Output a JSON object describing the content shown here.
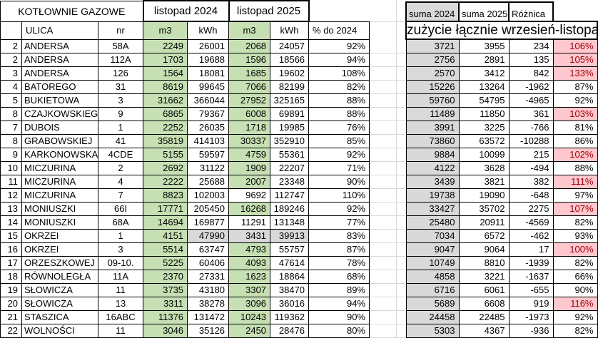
{
  "colors": {
    "green": "#c6e0b4",
    "gray": "#d9d9d9",
    "pink": "#ffc7ce",
    "red_text": "#9c0006",
    "border": "#000000",
    "gridline": "#d9d9d9"
  },
  "left_table": {
    "title": "KOTŁOWNIE GAZOWE",
    "groups": [
      {
        "label": "listopad 2024"
      },
      {
        "label": "listopad 2025"
      }
    ],
    "columns": {
      "ulica": "ULICA",
      "nr": "nr",
      "m3": "m3",
      "kwh": "kWh",
      "pct": "% do 2024"
    },
    "rows": [
      {
        "num": "2",
        "ulica": "ANDERSA",
        "nr": "58A",
        "m3_2024": "2249",
        "kwh_2024": "26001",
        "m3_2025": "2068",
        "kwh_2025": "24057",
        "pct": "92%"
      },
      {
        "num": "2",
        "ulica": "ANDERSA",
        "nr": "112A",
        "m3_2024": "1703",
        "kwh_2024": "19688",
        "m3_2025": "1596",
        "kwh_2025": "18566",
        "pct": "94%"
      },
      {
        "num": "3",
        "ulica": "ANDERSA",
        "nr": "126",
        "m3_2024": "1564",
        "kwh_2024": "18081",
        "m3_2025": "1685",
        "kwh_2025": "19602",
        "pct": "108%"
      },
      {
        "num": "4",
        "ulica": "BATOREGO",
        "nr": "31",
        "m3_2024": "8619",
        "kwh_2024": "99645",
        "m3_2025": "7066",
        "kwh_2025": "82199",
        "pct": "82%"
      },
      {
        "num": "5",
        "ulica": "BUKIETOWA",
        "nr": "3",
        "m3_2024": "31662",
        "kwh_2024": "366044",
        "m3_2025": "27952",
        "kwh_2025": "325165",
        "pct": "88%"
      },
      {
        "num": "8",
        "ulica": "CZAJKOWSKIEGO",
        "nr": "9",
        "m3_2024": "6865",
        "kwh_2024": "79367",
        "m3_2025": "6008",
        "kwh_2025": "69891",
        "pct": "88%"
      },
      {
        "num": "7",
        "ulica": "DUBOIS",
        "nr": "1",
        "m3_2024": "2252",
        "kwh_2024": "26035",
        "m3_2025": "1718",
        "kwh_2025": "19985",
        "pct": "76%"
      },
      {
        "num": "8",
        "ulica": "GRABOWSKIEJ",
        "nr": "41",
        "m3_2024": "35819",
        "kwh_2024": "414103",
        "m3_2025": "30337",
        "kwh_2025": "352910",
        "pct": "85%"
      },
      {
        "num": "9",
        "ulica": "KARKONOWSKA",
        "nr": "4CDE",
        "m3_2024": "5155",
        "kwh_2024": "59597",
        "m3_2025": "4759",
        "kwh_2025": "55361",
        "pct": "92%"
      },
      {
        "num": "10",
        "ulica": "MICZURINA",
        "nr": "2",
        "m3_2024": "2692",
        "kwh_2024": "31122",
        "m3_2025": "1909",
        "kwh_2025": "22207",
        "pct": "71%"
      },
      {
        "num": "11",
        "ulica": "MICZURINA",
        "nr": "4",
        "m3_2024": "2222",
        "kwh_2024": "25688",
        "m3_2025": "2007",
        "kwh_2025": "23348",
        "pct": "90%"
      },
      {
        "num": "12",
        "ulica": "MICZURINA",
        "nr": "7",
        "m3_2024": "8823",
        "kwh_2024": "102003",
        "m3_2025": "9692",
        "kwh_2025": "112747",
        "pct": "110%",
        "fills": {
          "m3_2025": "white"
        }
      },
      {
        "num": "13",
        "ulica": "MONIUSZKI",
        "nr": "66I",
        "m3_2024": "17771",
        "kwh_2024": "205450",
        "m3_2025": "16268",
        "kwh_2025": "189246",
        "pct": "92%"
      },
      {
        "num": "14",
        "ulica": "MONIUSZKI",
        "nr": "68A",
        "m3_2024": "14694",
        "kwh_2024": "169877",
        "m3_2025": "11291",
        "kwh_2025": "131348",
        "pct": "77%",
        "fills": {
          "m3_2025": "white"
        }
      },
      {
        "num": "15",
        "ulica": "OKRZEI",
        "nr": "1",
        "m3_2024": "4151",
        "kwh_2024": "47990",
        "m3_2025": "3431",
        "kwh_2025": "39913",
        "pct": "83%",
        "fills": {
          "kwh_2024": "gray",
          "m3_2025": "gray",
          "kwh_2025": "gray"
        }
      },
      {
        "num": "16",
        "ulica": "OKRZEI",
        "nr": "3",
        "m3_2024": "5514",
        "kwh_2024": "63747",
        "m3_2025": "4793",
        "kwh_2025": "55757",
        "pct": "87%"
      },
      {
        "num": "17",
        "ulica": "ORZESZKOWEJ",
        "nr": "09-10.",
        "m3_2024": "5225",
        "kwh_2024": "60406",
        "m3_2025": "4093",
        "kwh_2025": "47614",
        "pct": "78%"
      },
      {
        "num": "18",
        "ulica": "RÓWNOLEGŁA",
        "nr": "11A",
        "m3_2024": "2370",
        "kwh_2024": "27331",
        "m3_2025": "1623",
        "kwh_2025": "18864",
        "pct": "68%"
      },
      {
        "num": "19",
        "ulica": "SŁOWICZA",
        "nr": "11",
        "m3_2024": "3735",
        "kwh_2024": "43180",
        "m3_2025": "3307",
        "kwh_2025": "38470",
        "pct": "89%"
      },
      {
        "num": "20",
        "ulica": "SŁOWICZA",
        "nr": "13",
        "m3_2024": "3311",
        "kwh_2024": "38278",
        "m3_2025": "3096",
        "kwh_2025": "36016",
        "pct": "94%"
      },
      {
        "num": "21",
        "ulica": "STASZICA",
        "nr": "16ABC",
        "m3_2024": "11376",
        "kwh_2024": "131472",
        "m3_2025": "10243",
        "kwh_2025": "119362",
        "pct": "90%"
      },
      {
        "num": "22",
        "ulica": "WOLNOŚCI",
        "nr": "11",
        "m3_2024": "3046",
        "kwh_2024": "35126",
        "m3_2025": "2450",
        "kwh_2025": "28476",
        "pct": "80%"
      }
    ]
  },
  "right_table": {
    "headers": {
      "suma_2024": "suma 2024",
      "suma_2025": "suma 2025",
      "roznica": "Różnica"
    },
    "title": "zużycie łącznie wrzesień-listopad",
    "rows": [
      {
        "suma_2024": "3721",
        "suma_2025": "3955",
        "roznica": "234",
        "pct": "106%",
        "highlight": true
      },
      {
        "suma_2024": "2756",
        "suma_2025": "2891",
        "roznica": "135",
        "pct": "105%",
        "highlight": true
      },
      {
        "suma_2024": "2570",
        "suma_2025": "3412",
        "roznica": "842",
        "pct": "133%",
        "highlight": true
      },
      {
        "suma_2024": "15226",
        "suma_2025": "13264",
        "roznica": "-1962",
        "pct": "87%",
        "highlight": false
      },
      {
        "suma_2024": "59760",
        "suma_2025": "54795",
        "roznica": "-4965",
        "pct": "92%",
        "highlight": false
      },
      {
        "suma_2024": "11489",
        "suma_2025": "11850",
        "roznica": "361",
        "pct": "103%",
        "highlight": true
      },
      {
        "suma_2024": "3991",
        "suma_2025": "3225",
        "roznica": "-766",
        "pct": "81%",
        "highlight": false
      },
      {
        "suma_2024": "73860",
        "suma_2025": "63572",
        "roznica": "-10288",
        "pct": "86%",
        "highlight": false
      },
      {
        "suma_2024": "9884",
        "suma_2025": "10099",
        "roznica": "215",
        "pct": "102%",
        "highlight": true
      },
      {
        "suma_2024": "4122",
        "suma_2025": "3628",
        "roznica": "-494",
        "pct": "88%",
        "highlight": false
      },
      {
        "suma_2024": "3439",
        "suma_2025": "3821",
        "roznica": "382",
        "pct": "111%",
        "highlight": true
      },
      {
        "suma_2024": "19738",
        "suma_2025": "19090",
        "roznica": "-648",
        "pct": "97%",
        "highlight": false
      },
      {
        "suma_2024": "33427",
        "suma_2025": "35702",
        "roznica": "2275",
        "pct": "107%",
        "highlight": true
      },
      {
        "suma_2024": "25480",
        "suma_2025": "20911",
        "roznica": "-4569",
        "pct": "82%",
        "highlight": false
      },
      {
        "suma_2024": "7034",
        "suma_2025": "6572",
        "roznica": "-462",
        "pct": "93%",
        "highlight": false
      },
      {
        "suma_2024": "9047",
        "suma_2025": "9064",
        "roznica": "17",
        "pct": "100%",
        "highlight": true
      },
      {
        "suma_2024": "10749",
        "suma_2025": "8810",
        "roznica": "-1939",
        "pct": "82%",
        "highlight": false
      },
      {
        "suma_2024": "4858",
        "suma_2025": "3221",
        "roznica": "-1637",
        "pct": "66%",
        "highlight": false
      },
      {
        "suma_2024": "6716",
        "suma_2025": "6061",
        "roznica": "-655",
        "pct": "90%",
        "highlight": false
      },
      {
        "suma_2024": "5689",
        "suma_2025": "6608",
        "roznica": "919",
        "pct": "116%",
        "highlight": true
      },
      {
        "suma_2024": "24458",
        "suma_2025": "22485",
        "roznica": "-1973",
        "pct": "92%",
        "highlight": false
      },
      {
        "suma_2024": "5303",
        "suma_2025": "4367",
        "roznica": "-936",
        "pct": "82%",
        "highlight": false
      }
    ]
  }
}
